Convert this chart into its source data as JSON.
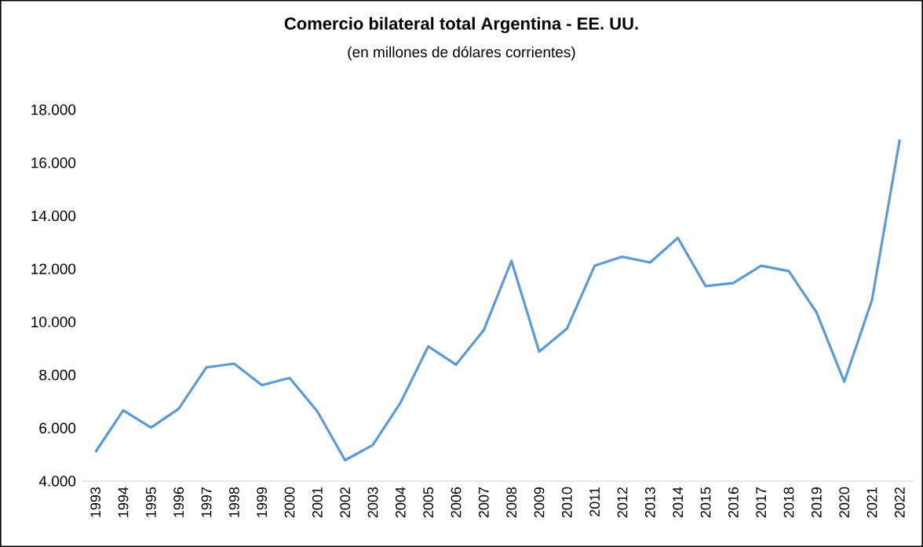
{
  "chart_data": {
    "type": "line",
    "title": "Comercio bilateral total Argentina - EE. UU.",
    "subtitle": "(en millones de dólares corrientes)",
    "categories": [
      "1993",
      "1994",
      "1995",
      "1996",
      "1997",
      "1998",
      "1999",
      "2000",
      "2001",
      "2002",
      "2003",
      "2004",
      "2005",
      "2006",
      "2007",
      "2008",
      "2009",
      "2010",
      "2011",
      "2012",
      "2013",
      "2014",
      "2015",
      "2016",
      "2017",
      "2018",
      "2019",
      "2020",
      "2021",
      "2022"
    ],
    "series": [
      {
        "color": "#5b9bd5",
        "values": [
          5100,
          6670,
          6020,
          6730,
          8290,
          8430,
          7620,
          7890,
          6630,
          4790,
          5360,
          6960,
          9080,
          8390,
          9690,
          12300,
          8880,
          9750,
          12120,
          12460,
          12240,
          13170,
          11350,
          11470,
          12120,
          11920,
          10360,
          7750,
          10820,
          16880
        ]
      }
    ],
    "ylim": [
      4000,
      18000
    ],
    "yticks": [
      {
        "value": 4000,
        "label": "4.000"
      },
      {
        "value": 6000,
        "label": "6.000"
      },
      {
        "value": 8000,
        "label": "8.000"
      },
      {
        "value": 10000,
        "label": "10.000"
      },
      {
        "value": 12000,
        "label": "12.000"
      },
      {
        "value": 14000,
        "label": "14.000"
      },
      {
        "value": 16000,
        "label": "16.000"
      },
      {
        "value": 18000,
        "label": "18.000"
      }
    ],
    "grid": false,
    "marker": "none",
    "line_style": "solid"
  }
}
